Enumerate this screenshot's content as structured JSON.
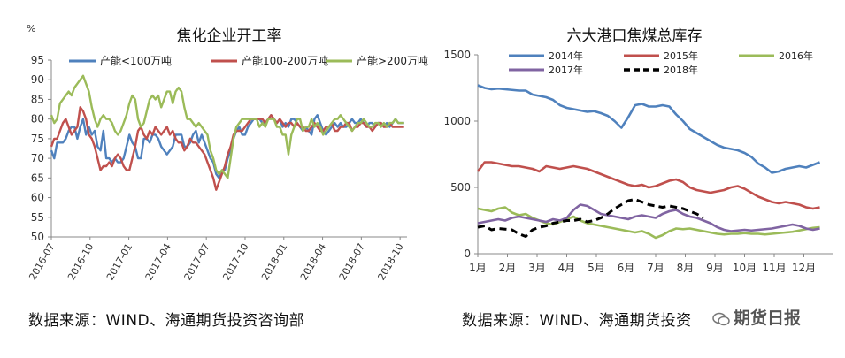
{
  "footer": {
    "left_source": "数据来源：WIND、海通期货投资咨询部",
    "right_source": "数据来源：WIND、海通期货投资",
    "watermark": "期货日报"
  },
  "chart_data": [
    {
      "type": "line",
      "title": "焦化企业开工率",
      "ylabel": "%",
      "ylim": [
        50,
        95
      ],
      "yticks": [
        50,
        55,
        60,
        65,
        70,
        75,
        80,
        85,
        90,
        95
      ],
      "x_tick_labels": [
        "2016-07",
        "2016-10",
        "2017-01",
        "2017-04",
        "2017-07",
        "2017-10",
        "2018-01",
        "2018-04",
        "2018-07",
        "2018-10"
      ],
      "x_range_weeks": [
        0,
        123
      ],
      "legend": "top",
      "series": [
        {
          "name": "产能<100万吨",
          "color": "#4F81BD",
          "values": [
            72,
            70,
            74,
            74,
            74,
            75,
            77,
            78,
            78,
            75,
            78,
            80,
            76,
            78,
            76,
            77,
            73,
            72,
            77,
            70,
            70,
            69,
            70,
            69,
            69,
            70,
            73,
            76,
            74,
            73,
            70,
            70,
            75,
            75,
            74,
            76,
            76,
            75,
            73,
            72,
            71,
            72,
            73,
            76,
            76,
            76,
            73,
            73,
            74,
            76,
            77,
            74,
            76,
            74,
            72,
            70,
            69,
            66,
            65,
            67,
            67,
            70,
            72,
            75,
            77,
            78,
            76,
            76,
            78,
            79,
            80,
            80,
            80,
            79,
            79,
            80,
            81,
            80,
            79,
            80,
            78,
            79,
            78,
            80,
            80,
            79,
            78,
            77,
            78,
            77,
            76,
            80,
            81,
            79,
            77,
            76,
            77,
            78,
            79,
            78,
            79,
            78,
            78,
            79,
            80,
            79,
            79,
            80,
            79,
            78,
            79,
            79,
            78,
            79,
            79,
            78,
            79,
            78,
            79,
            80,
            79,
            79,
            79
          ]
        },
        {
          "name": "产能100-200万吨",
          "color": "#C0504D",
          "values": [
            73,
            75,
            75,
            77,
            79,
            80,
            78,
            76,
            77,
            78,
            83,
            82,
            80,
            76,
            75,
            73,
            70,
            67,
            68,
            68,
            69,
            68,
            70,
            71,
            70,
            68,
            67,
            67,
            70,
            73,
            77,
            78,
            76,
            75,
            77,
            76,
            78,
            77,
            76,
            77,
            78,
            76,
            77,
            75,
            74,
            74,
            72,
            73,
            75,
            74,
            74,
            73,
            72,
            71,
            69,
            67,
            65,
            62,
            64,
            66,
            68,
            71,
            73,
            76,
            77,
            77,
            77,
            78,
            79,
            80,
            80,
            80,
            80,
            80,
            79,
            80,
            81,
            80,
            79,
            80,
            79,
            78,
            79,
            79,
            78,
            79,
            78,
            78,
            77,
            77,
            78,
            79,
            78,
            77,
            77,
            78,
            78,
            79,
            77,
            77,
            78,
            78,
            79,
            79,
            77,
            78,
            78,
            79,
            79,
            78,
            78,
            77,
            78,
            79,
            79,
            78,
            78,
            79,
            78,
            78,
            78,
            78,
            78
          ]
        },
        {
          "name": "产能>200万吨",
          "color": "#9BBB59",
          "values": [
            81,
            79,
            80,
            84,
            85,
            86,
            87,
            86,
            88,
            89,
            90,
            91,
            89,
            87,
            83,
            80,
            78,
            80,
            81,
            80,
            80,
            79,
            77,
            76,
            77,
            79,
            81,
            84,
            86,
            85,
            80,
            78,
            79,
            82,
            85,
            86,
            85,
            86,
            83,
            85,
            87,
            87,
            84,
            87,
            88,
            87,
            83,
            80,
            80,
            79,
            78,
            79,
            78,
            77,
            76,
            72,
            70,
            67,
            66,
            67,
            66,
            65,
            70,
            75,
            78,
            79,
            80,
            80,
            80,
            80,
            80,
            80,
            78,
            79,
            78,
            80,
            80,
            80,
            78,
            78,
            76,
            76,
            71,
            76,
            78,
            80,
            80,
            77,
            78,
            78,
            80,
            78,
            79,
            78,
            76,
            77,
            78,
            79,
            80,
            80,
            81,
            80,
            79,
            78,
            77,
            78,
            79,
            79,
            80,
            79,
            78,
            78,
            79,
            79,
            78,
            79,
            78,
            79,
            79,
            80,
            79,
            79,
            79
          ]
        }
      ]
    },
    {
      "type": "line",
      "title": "六大港口焦煤总库存",
      "ylim": [
        0,
        1500
      ],
      "yticks": [
        0,
        500,
        1000,
        1500
      ],
      "x_tick_labels": [
        "1月",
        "2月",
        "3月",
        "4月",
        "5月",
        "6月",
        "7月",
        "8月",
        "9月",
        "10月",
        "11月",
        "12月"
      ],
      "x_range_weeks": [
        0,
        52
      ],
      "legend": "top",
      "series": [
        {
          "name": "2014年",
          "color": "#4F81BD",
          "dash": false,
          "values": [
            1270,
            1250,
            1240,
            1245,
            1240,
            1235,
            1230,
            1230,
            1200,
            1190,
            1180,
            1160,
            1120,
            1100,
            1090,
            1080,
            1070,
            1075,
            1060,
            1040,
            1000,
            950,
            1030,
            1120,
            1130,
            1110,
            1110,
            1120,
            1110,
            1050,
            1000,
            940,
            910,
            880,
            850,
            820,
            800,
            790,
            780,
            760,
            730,
            680,
            650,
            610,
            620,
            640,
            650,
            660,
            650,
            670,
            690
          ]
        },
        {
          "name": "2015年",
          "color": "#C0504D",
          "dash": false,
          "values": [
            620,
            690,
            690,
            680,
            670,
            660,
            660,
            650,
            640,
            620,
            660,
            650,
            640,
            650,
            660,
            650,
            640,
            620,
            600,
            580,
            560,
            540,
            520,
            510,
            520,
            500,
            510,
            530,
            550,
            560,
            540,
            500,
            480,
            470,
            460,
            470,
            480,
            500,
            510,
            490,
            460,
            430,
            410,
            390,
            380,
            390,
            380,
            370,
            350,
            340,
            350
          ]
        },
        {
          "name": "2016年",
          "color": "#9BBB59",
          "dash": false,
          "values": [
            340,
            330,
            320,
            340,
            350,
            310,
            290,
            300,
            270,
            250,
            230,
            220,
            240,
            260,
            280,
            250,
            230,
            220,
            210,
            200,
            190,
            180,
            170,
            160,
            170,
            150,
            120,
            140,
            170,
            190,
            185,
            190,
            180,
            170,
            160,
            150,
            145,
            150,
            150,
            155,
            150,
            150,
            145,
            150,
            155,
            160,
            165,
            175,
            185,
            195,
            200
          ]
        },
        {
          "name": "2017年",
          "color": "#8064A2",
          "dash": false,
          "values": [
            230,
            240,
            250,
            260,
            250,
            270,
            280,
            270,
            260,
            250,
            240,
            260,
            250,
            270,
            330,
            370,
            360,
            330,
            300,
            290,
            280,
            270,
            260,
            280,
            290,
            280,
            270,
            300,
            320,
            330,
            300,
            280,
            270,
            250,
            230,
            200,
            180,
            170,
            175,
            180,
            175,
            180,
            185,
            190,
            200,
            210,
            220,
            210,
            190,
            180,
            190
          ]
        },
        {
          "name": "2018年",
          "color": "#000000",
          "dash": true,
          "values": [
            200,
            210,
            180,
            190,
            185,
            180,
            150,
            130,
            180,
            200,
            210,
            230,
            240,
            250,
            250,
            260,
            240,
            250,
            270,
            300,
            340,
            370,
            400,
            410,
            390,
            370,
            360,
            350,
            360,
            350,
            340,
            320,
            300,
            270
          ]
        }
      ]
    }
  ]
}
